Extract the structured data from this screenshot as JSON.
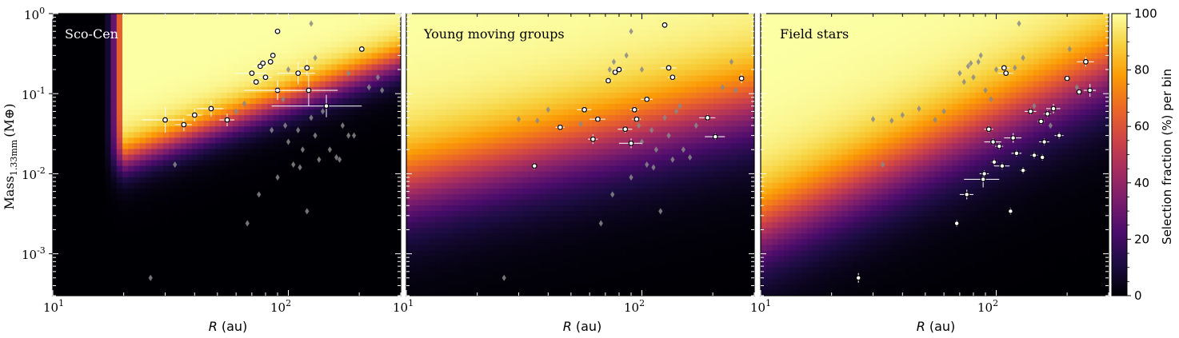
{
  "figure": {
    "ylabel": "Mass",
    "ylabel_sub": "1.33mm",
    "ylabel_unit": "(M⊕)",
    "xlabel_var": "R",
    "xlabel_unit": "(au)",
    "x_tick_labels": [
      "10",
      "10"
    ],
    "x_tick_exponents": [
      "1",
      "2"
    ],
    "y_tick_labels": [
      "10",
      "10",
      "10",
      "10"
    ],
    "y_tick_exponents": [
      "0",
      "-1",
      "-2",
      "-3"
    ]
  },
  "colorbar": {
    "label": "Selection fraction (%) per bin",
    "ticks": [
      "0",
      "20",
      "40",
      "60",
      "80",
      "100"
    ],
    "colormap": "inferno",
    "stops": [
      "#000004",
      "#1b0c41",
      "#4a0c6b",
      "#781c6d",
      "#a52c60",
      "#cf4446",
      "#ed6925",
      "#fb9b06",
      "#f7d13d",
      "#fcffa4"
    ]
  },
  "chart_data": [
    {
      "type": "heatmap+scatter",
      "title": "Sco-Cen",
      "xlabel": "R (au)",
      "ylabel": "Mass_1.33mm (M⊕)",
      "xscale": "log",
      "yscale": "log",
      "xlim": [
        10,
        300
      ],
      "ylim": [
        0.0003,
        1
      ],
      "selection_model": {
        "r_min_au": 20,
        "r_soft_au": 16,
        "min_mass_at_20au": 0.008,
        "mass_slope": 1.05,
        "transition_dex": 0.55
      },
      "series": [
        {
          "name": "highlighted",
          "color": "#ffffff",
          "points": [
            {
              "x": 30,
              "y": 0.047,
              "xerr": 6,
              "yerr": 0.4
            },
            {
              "x": 36,
              "y": 0.041,
              "xerr": 3,
              "yerr": 0.2
            },
            {
              "x": 40,
              "y": 0.054,
              "xerr": 3,
              "yerr": 0.2
            },
            {
              "x": 47,
              "y": 0.065,
              "xerr": 6,
              "yerr": 0.25
            },
            {
              "x": 55,
              "y": 0.047,
              "xerr": 4,
              "yerr": 0.2
            },
            {
              "x": 70,
              "y": 0.18,
              "xerr": 10,
              "yerr": 0.1
            },
            {
              "x": 73,
              "y": 0.14,
              "xerr": 4,
              "yerr": 0.1
            },
            {
              "x": 76,
              "y": 0.22,
              "xerr": 5,
              "yerr": 0.1
            },
            {
              "x": 78,
              "y": 0.24,
              "xerr": 4,
              "yerr": 0.1
            },
            {
              "x": 80,
              "y": 0.16,
              "xerr": 5,
              "yerr": 0.1
            },
            {
              "x": 84,
              "y": 0.25,
              "xerr": 4,
              "yerr": 0.1
            },
            {
              "x": 86,
              "y": 0.3,
              "xerr": 3,
              "yerr": 0.1
            },
            {
              "x": 90,
              "y": 0.6,
              "xerr": 3,
              "yerr": 0.05
            },
            {
              "x": 90,
              "y": 0.11,
              "xerr": 25,
              "yerr": 0.3
            },
            {
              "x": 110,
              "y": 0.18,
              "xerr": 20,
              "yerr": 0.35
            },
            {
              "x": 120,
              "y": 0.21,
              "xerr": 8,
              "yerr": 0.25
            },
            {
              "x": 122,
              "y": 0.11,
              "xerr": 40,
              "yerr": 0.5
            },
            {
              "x": 145,
              "y": 0.07,
              "xerr": 60,
              "yerr": 0.35
            },
            {
              "x": 205,
              "y": 0.36,
              "xerr": 6,
              "yerr": 0.05
            }
          ]
        },
        {
          "name": "other",
          "color": "#888888",
          "points": [
            {
              "x": 26,
              "y": 0.0005
            },
            {
              "x": 33,
              "y": 0.013
            },
            {
              "x": 67,
              "y": 0.0024
            },
            {
              "x": 75,
              "y": 0.0055
            },
            {
              "x": 85,
              "y": 0.035
            },
            {
              "x": 90,
              "y": 0.009
            },
            {
              "x": 97,
              "y": 0.04
            },
            {
              "x": 100,
              "y": 0.025
            },
            {
              "x": 105,
              "y": 0.013
            },
            {
              "x": 110,
              "y": 0.035
            },
            {
              "x": 112,
              "y": 0.012
            },
            {
              "x": 115,
              "y": 0.02
            },
            {
              "x": 120,
              "y": 0.0034
            },
            {
              "x": 125,
              "y": 0.05
            },
            {
              "x": 130,
              "y": 0.03
            },
            {
              "x": 135,
              "y": 0.015
            },
            {
              "x": 140,
              "y": 0.06
            },
            {
              "x": 150,
              "y": 0.02
            },
            {
              "x": 160,
              "y": 0.016
            },
            {
              "x": 165,
              "y": 0.015
            },
            {
              "x": 170,
              "y": 0.04
            },
            {
              "x": 180,
              "y": 0.03
            },
            {
              "x": 190,
              "y": 0.03
            },
            {
              "x": 220,
              "y": 0.12
            },
            {
              "x": 240,
              "y": 0.16
            },
            {
              "x": 250,
              "y": 0.11
            },
            {
              "x": 125,
              "y": 0.75
            },
            {
              "x": 130,
              "y": 0.28
            },
            {
              "x": 100,
              "y": 0.2
            },
            {
              "x": 180,
              "y": 0.18
            },
            {
              "x": 60,
              "y": 0.06
            },
            {
              "x": 65,
              "y": 0.075
            },
            {
              "x": 95,
              "y": 0.085
            }
          ]
        }
      ]
    },
    {
      "type": "heatmap+scatter",
      "title": "Young moving groups",
      "xlabel": "R (au)",
      "ylabel": "Mass_1.33mm (M⊕)",
      "xscale": "log",
      "yscale": "log",
      "xlim": [
        10,
        300
      ],
      "ylim": [
        0.0003,
        1
      ],
      "selection_model": {
        "r_min_au": 0,
        "r_soft_au": 0,
        "min_mass_at_20au": 0.0025,
        "mass_slope": 0.7,
        "transition_dex": 1.3
      },
      "series": [
        {
          "name": "highlighted",
          "color": "#ffffff",
          "points": [
            {
              "x": 35,
              "y": 0.0125,
              "xerr": 0,
              "yerr": 0.1
            },
            {
              "x": 45,
              "y": 0.038,
              "xerr": 2,
              "yerr": 0.1
            },
            {
              "x": 57,
              "y": 0.063,
              "xerr": 4,
              "yerr": 0.1
            },
            {
              "x": 62,
              "y": 0.027,
              "xerr": 3,
              "yerr": 0.15
            },
            {
              "x": 65,
              "y": 0.048,
              "xerr": 5,
              "yerr": 0.1
            },
            {
              "x": 72,
              "y": 0.145,
              "xerr": 3,
              "yerr": 0.1
            },
            {
              "x": 77,
              "y": 0.185,
              "xerr": 3,
              "yerr": 0.1
            },
            {
              "x": 80,
              "y": 0.2,
              "xerr": 4,
              "yerr": 0.1
            },
            {
              "x": 85,
              "y": 0.036,
              "xerr": 6,
              "yerr": 0.1
            },
            {
              "x": 90,
              "y": 0.024,
              "xerr": 10,
              "yerr": 0.15
            },
            {
              "x": 93,
              "y": 0.063,
              "xerr": 4,
              "yerr": 0.1
            },
            {
              "x": 95,
              "y": 0.048,
              "xerr": 4,
              "yerr": 0.1
            },
            {
              "x": 105,
              "y": 0.085,
              "xerr": 6,
              "yerr": 0.1
            },
            {
              "x": 125,
              "y": 0.72,
              "xerr": 3,
              "yerr": 0.05
            },
            {
              "x": 130,
              "y": 0.21,
              "xerr": 10,
              "yerr": 0.1
            },
            {
              "x": 135,
              "y": 0.16,
              "xerr": 6,
              "yerr": 0.1
            },
            {
              "x": 190,
              "y": 0.05,
              "xerr": 15,
              "yerr": 0.1
            },
            {
              "x": 205,
              "y": 0.029,
              "xerr": 20,
              "yerr": 0.1
            },
            {
              "x": 265,
              "y": 0.155,
              "xerr": 8,
              "yerr": 0.15
            }
          ]
        },
        {
          "name": "other",
          "color": "#888888",
          "points": [
            {
              "x": 26,
              "y": 0.0005
            },
            {
              "x": 30,
              "y": 0.048
            },
            {
              "x": 36,
              "y": 0.046
            },
            {
              "x": 40,
              "y": 0.063
            },
            {
              "x": 55,
              "y": 0.042
            },
            {
              "x": 67,
              "y": 0.0024
            },
            {
              "x": 75,
              "y": 0.0055
            },
            {
              "x": 85,
              "y": 0.035
            },
            {
              "x": 90,
              "y": 0.009
            },
            {
              "x": 97,
              "y": 0.04
            },
            {
              "x": 100,
              "y": 0.025
            },
            {
              "x": 105,
              "y": 0.013
            },
            {
              "x": 110,
              "y": 0.035
            },
            {
              "x": 112,
              "y": 0.012
            },
            {
              "x": 115,
              "y": 0.02
            },
            {
              "x": 120,
              "y": 0.0034
            },
            {
              "x": 125,
              "y": 0.05
            },
            {
              "x": 130,
              "y": 0.03
            },
            {
              "x": 135,
              "y": 0.015
            },
            {
              "x": 140,
              "y": 0.06
            },
            {
              "x": 150,
              "y": 0.02
            },
            {
              "x": 160,
              "y": 0.016
            },
            {
              "x": 170,
              "y": 0.04
            },
            {
              "x": 220,
              "y": 0.12
            },
            {
              "x": 240,
              "y": 0.25
            },
            {
              "x": 250,
              "y": 0.11
            },
            {
              "x": 73,
              "y": 0.2
            },
            {
              "x": 76,
              "y": 0.25
            },
            {
              "x": 86,
              "y": 0.3
            },
            {
              "x": 90,
              "y": 0.6
            },
            {
              "x": 100,
              "y": 0.2
            },
            {
              "x": 145,
              "y": 0.07
            }
          ]
        }
      ]
    },
    {
      "type": "heatmap+scatter",
      "title": "Field stars",
      "xlabel": "R (au)",
      "ylabel": "Mass_1.33mm (M⊕)",
      "xscale": "log",
      "yscale": "log",
      "xlim": [
        10,
        300
      ],
      "ylim": [
        0.0003,
        1
      ],
      "selection_model": {
        "r_min_au": 0,
        "r_soft_au": 0,
        "min_mass_at_20au": 0.0012,
        "mass_slope": 1.35,
        "transition_dex": 1.25
      },
      "series": [
        {
          "name": "highlighted",
          "color": "#ffffff",
          "points": [
            {
              "x": 68,
              "y": 0.0024,
              "xerr": 0,
              "yerr": 0.1
            },
            {
              "x": 26,
              "y": 0.0005,
              "xerr": 0,
              "yerr": 0.15
            },
            {
              "x": 75,
              "y": 0.0055,
              "xerr": 5,
              "yerr": 0.15
            },
            {
              "x": 88,
              "y": 0.0085,
              "xerr": 15,
              "yerr": 0.25
            },
            {
              "x": 89,
              "y": 0.01,
              "xerr": 4,
              "yerr": 0.1
            },
            {
              "x": 93,
              "y": 0.036,
              "xerr": 4,
              "yerr": 0.1
            },
            {
              "x": 97,
              "y": 0.025,
              "xerr": 8,
              "yerr": 0.1
            },
            {
              "x": 98,
              "y": 0.014,
              "xerr": 3,
              "yerr": 0.1
            },
            {
              "x": 103,
              "y": 0.022,
              "xerr": 4,
              "yerr": 0.1
            },
            {
              "x": 106,
              "y": 0.0125,
              "xerr": 8,
              "yerr": 0.1
            },
            {
              "x": 108,
              "y": 0.21,
              "xerr": 6,
              "yerr": 0.1
            },
            {
              "x": 110,
              "y": 0.18,
              "xerr": 8,
              "yerr": 0.1
            },
            {
              "x": 115,
              "y": 0.0034,
              "xerr": 0,
              "yerr": 0.1
            },
            {
              "x": 118,
              "y": 0.028,
              "xerr": 10,
              "yerr": 0.15
            },
            {
              "x": 122,
              "y": 0.018,
              "xerr": 6,
              "yerr": 0.1
            },
            {
              "x": 130,
              "y": 0.011,
              "xerr": 4,
              "yerr": 0.1
            },
            {
              "x": 140,
              "y": 0.06,
              "xerr": 8,
              "yerr": 0.1
            },
            {
              "x": 145,
              "y": 0.017,
              "xerr": 5,
              "yerr": 0.1
            },
            {
              "x": 155,
              "y": 0.045,
              "xerr": 5,
              "yerr": 0.1
            },
            {
              "x": 157,
              "y": 0.016,
              "xerr": 3,
              "yerr": 0.1
            },
            {
              "x": 160,
              "y": 0.025,
              "xerr": 8,
              "yerr": 0.1
            },
            {
              "x": 165,
              "y": 0.056,
              "xerr": 6,
              "yerr": 0.1
            },
            {
              "x": 175,
              "y": 0.065,
              "xerr": 12,
              "yerr": 0.15
            },
            {
              "x": 185,
              "y": 0.03,
              "xerr": 8,
              "yerr": 0.1
            },
            {
              "x": 200,
              "y": 0.155,
              "xerr": 4,
              "yerr": 0.1
            },
            {
              "x": 225,
              "y": 0.105,
              "xerr": 4,
              "yerr": 0.1
            },
            {
              "x": 240,
              "y": 0.25,
              "xerr": 20,
              "yerr": 0.15
            },
            {
              "x": 250,
              "y": 0.11,
              "xerr": 15,
              "yerr": 0.2
            }
          ]
        },
        {
          "name": "other",
          "color": "#888888",
          "points": [
            {
              "x": 30,
              "y": 0.048
            },
            {
              "x": 33,
              "y": 0.013
            },
            {
              "x": 36,
              "y": 0.046
            },
            {
              "x": 40,
              "y": 0.054
            },
            {
              "x": 47,
              "y": 0.065
            },
            {
              "x": 55,
              "y": 0.047
            },
            {
              "x": 60,
              "y": 0.06
            },
            {
              "x": 70,
              "y": 0.18
            },
            {
              "x": 73,
              "y": 0.14
            },
            {
              "x": 76,
              "y": 0.22
            },
            {
              "x": 78,
              "y": 0.24
            },
            {
              "x": 80,
              "y": 0.16
            },
            {
              "x": 84,
              "y": 0.25
            },
            {
              "x": 86,
              "y": 0.3
            },
            {
              "x": 90,
              "y": 0.11
            },
            {
              "x": 95,
              "y": 0.085
            },
            {
              "x": 100,
              "y": 0.2
            },
            {
              "x": 120,
              "y": 0.21
            },
            {
              "x": 125,
              "y": 0.75
            },
            {
              "x": 130,
              "y": 0.28
            },
            {
              "x": 145,
              "y": 0.07
            },
            {
              "x": 170,
              "y": 0.04
            },
            {
              "x": 220,
              "y": 0.12
            },
            {
              "x": 205,
              "y": 0.36
            }
          ]
        }
      ]
    }
  ]
}
